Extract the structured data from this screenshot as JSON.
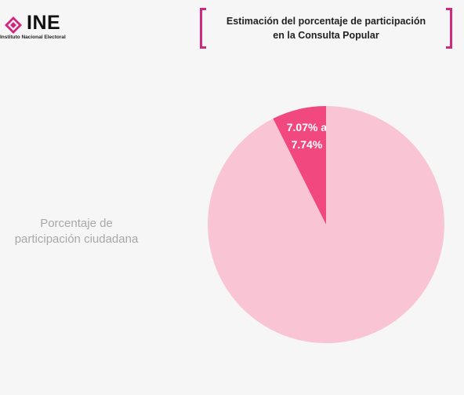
{
  "header": {
    "logo_text": "INE",
    "logo_subtitle": "Instituto Nacional Electoral",
    "title_line1": "Estimación del porcentaje de participación",
    "title_line2": "en la Consulta Popular"
  },
  "side_label": {
    "line1": "Porcentaje de",
    "line2": "participación ciudadana"
  },
  "colors": {
    "accent": "#cf2a7f",
    "slice_participation": "#f0487f",
    "slice_rest": "#f9c5d5"
  },
  "chart_data": {
    "type": "pie",
    "title": "Estimación del porcentaje de participación en la Consulta Popular",
    "slices": [
      {
        "value": 7.4,
        "label_line1": "7.07% a",
        "label_line2": "7.74%",
        "color": "#f0487f"
      },
      {
        "value": 92.6,
        "label_line1": "",
        "label_line2": "",
        "color": "#f9c5d5"
      }
    ],
    "start_angle_deg": 0,
    "direction": "counterclockwise",
    "legend": "none"
  }
}
